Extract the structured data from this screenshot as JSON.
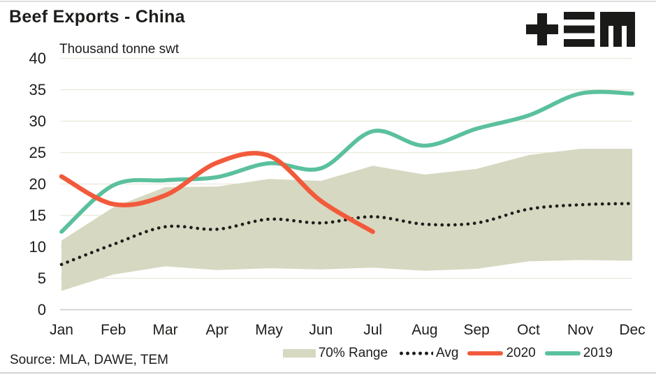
{
  "header": {
    "title": "Beef Exports - China",
    "logo_icon": "tem-logo"
  },
  "chart_data": {
    "type": "line",
    "title": "Beef Exports - China",
    "ylabel": "Thousand tonne swt",
    "categories": [
      "Jan",
      "Feb",
      "Mar",
      "Apr",
      "May",
      "Jun",
      "Jul",
      "Aug",
      "Sep",
      "Oct",
      "Nov",
      "Dec"
    ],
    "ylim": [
      0,
      40
    ],
    "yticks": [
      0,
      5,
      10,
      15,
      20,
      25,
      30,
      35,
      40
    ],
    "grid": "horizontal",
    "legend_position": "bottom-right",
    "band": {
      "name": "70% Range",
      "color": "#d7d8c1",
      "top": [
        11.0,
        16.3,
        19.5,
        19.6,
        20.8,
        20.5,
        22.9,
        21.5,
        22.4,
        24.6,
        25.6,
        25.6
      ],
      "bottom": [
        3.0,
        5.6,
        6.9,
        6.3,
        6.6,
        6.4,
        6.7,
        6.2,
        6.5,
        7.7,
        7.9,
        7.8
      ]
    },
    "series": [
      {
        "name": "Avg",
        "style": "dotted",
        "color": "#1e1e1c",
        "values": [
          7.2,
          10.4,
          13.2,
          12.8,
          14.4,
          13.8,
          14.8,
          13.6,
          13.8,
          16.0,
          16.7,
          16.9
        ]
      },
      {
        "name": "2019",
        "style": "solid",
        "color": "#5bc09d",
        "values": [
          12.4,
          19.8,
          20.6,
          21.1,
          23.3,
          22.5,
          28.4,
          26.1,
          28.8,
          30.9,
          34.4,
          34.4
        ]
      },
      {
        "name": "2020",
        "style": "solid",
        "color": "#f25a3c",
        "values": [
          21.2,
          16.8,
          18.2,
          23.4,
          24.5,
          17.3,
          12.4,
          null,
          null,
          null,
          null,
          null
        ]
      }
    ],
    "colors": {
      "gridline": "#ecebdf",
      "zero_axis": "#c9c9c5",
      "text": "#1d1d1b"
    }
  },
  "footer": {
    "source": "Source: MLA, DAWE, TEM"
  }
}
